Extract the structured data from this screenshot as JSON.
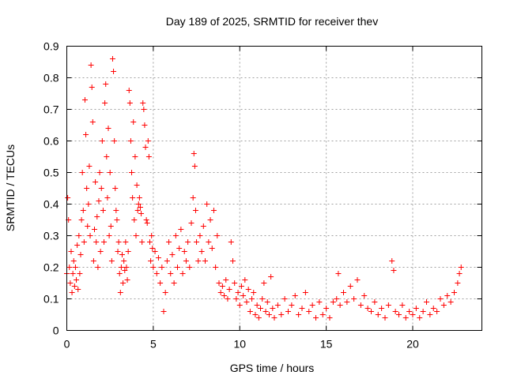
{
  "chart_data": {
    "type": "scatter",
    "title": "Day 189 of 2025, SRMTID for receiver thev",
    "xlabel": "GPS time / hours",
    "ylabel": "SRMTID / TECUs",
    "xlim": [
      0,
      24
    ],
    "ylim": [
      0,
      0.9
    ],
    "xticks": [
      0,
      5,
      10,
      15,
      20
    ],
    "xtick_labels": [
      "0",
      "5",
      "10",
      "15",
      "20"
    ],
    "yticks": [
      0,
      0.1,
      0.2,
      0.3,
      0.4,
      0.5,
      0.6,
      0.7,
      0.8,
      0.9
    ],
    "ytick_labels": [
      "0",
      "0.1",
      "0.2",
      "0.3",
      "0.4",
      "0.5",
      "0.6",
      "0.7",
      "0.8",
      "0.9"
    ],
    "grid": true,
    "marker": "plus",
    "color": "#ff0000",
    "series": [
      {
        "name": "SRMTID",
        "points": [
          [
            0.0,
            0.18
          ],
          [
            0.05,
            0.42
          ],
          [
            0.1,
            0.35
          ],
          [
            0.15,
            0.2
          ],
          [
            0.2,
            0.15
          ],
          [
            0.25,
            0.25
          ],
          [
            0.3,
            0.12
          ],
          [
            0.35,
            0.18
          ],
          [
            0.4,
            0.22
          ],
          [
            0.45,
            0.14
          ],
          [
            0.5,
            0.2
          ],
          [
            0.55,
            0.16
          ],
          [
            0.6,
            0.27
          ],
          [
            0.65,
            0.13
          ],
          [
            0.7,
            0.3
          ],
          [
            0.75,
            0.18
          ],
          [
            0.8,
            0.24
          ],
          [
            0.85,
            0.35
          ],
          [
            0.9,
            0.5
          ],
          [
            0.95,
            0.38
          ],
          [
            1.0,
            0.28
          ],
          [
            1.05,
            0.73
          ],
          [
            1.1,
            0.62
          ],
          [
            1.15,
            0.45
          ],
          [
            1.2,
            0.33
          ],
          [
            1.25,
            0.4
          ],
          [
            1.3,
            0.52
          ],
          [
            1.35,
            0.3
          ],
          [
            1.4,
            0.84
          ],
          [
            1.45,
            0.77
          ],
          [
            1.5,
            0.66
          ],
          [
            1.55,
            0.22
          ],
          [
            1.6,
            0.32
          ],
          [
            1.65,
            0.47
          ],
          [
            1.7,
            0.28
          ],
          [
            1.75,
            0.36
          ],
          [
            1.8,
            0.2
          ],
          [
            1.85,
            0.41
          ],
          [
            1.9,
            0.5
          ],
          [
            1.95,
            0.25
          ],
          [
            2.0,
            0.45
          ],
          [
            2.05,
            0.6
          ],
          [
            2.1,
            0.38
          ],
          [
            2.15,
            0.28
          ],
          [
            2.2,
            0.72
          ],
          [
            2.25,
            0.78
          ],
          [
            2.3,
            0.55
          ],
          [
            2.35,
            0.42
          ],
          [
            2.4,
            0.64
          ],
          [
            2.45,
            0.3
          ],
          [
            2.5,
            0.5
          ],
          [
            2.55,
            0.33
          ],
          [
            2.6,
            0.22
          ],
          [
            2.65,
            0.86
          ],
          [
            2.7,
            0.82
          ],
          [
            2.75,
            0.6
          ],
          [
            2.8,
            0.45
          ],
          [
            2.85,
            0.38
          ],
          [
            2.9,
            0.35
          ],
          [
            2.95,
            0.25
          ],
          [
            3.0,
            0.28
          ],
          [
            3.05,
            0.18
          ],
          [
            3.1,
            0.12
          ],
          [
            3.15,
            0.2
          ],
          [
            3.2,
            0.24
          ],
          [
            3.25,
            0.15
          ],
          [
            3.3,
            0.22
          ],
          [
            3.35,
            0.19
          ],
          [
            3.4,
            0.28
          ],
          [
            3.45,
            0.2
          ],
          [
            3.5,
            0.16
          ],
          [
            3.55,
            0.25
          ],
          [
            3.6,
            0.76
          ],
          [
            3.65,
            0.72
          ],
          [
            3.7,
            0.6
          ],
          [
            3.75,
            0.5
          ],
          [
            3.8,
            0.42
          ],
          [
            3.85,
            0.66
          ],
          [
            3.9,
            0.35
          ],
          [
            3.95,
            0.55
          ],
          [
            4.0,
            0.3
          ],
          [
            4.05,
            0.46
          ],
          [
            4.1,
            0.38
          ],
          [
            4.15,
            0.4
          ],
          [
            4.2,
            0.42
          ],
          [
            4.25,
            0.39
          ],
          [
            4.3,
            0.37
          ],
          [
            4.35,
            0.28
          ],
          [
            4.4,
            0.72
          ],
          [
            4.45,
            0.7
          ],
          [
            4.5,
            0.65
          ],
          [
            4.55,
            0.58
          ],
          [
            4.6,
            0.35
          ],
          [
            4.65,
            0.34
          ],
          [
            4.7,
            0.6
          ],
          [
            4.75,
            0.55
          ],
          [
            4.8,
            0.28
          ],
          [
            4.85,
            0.22
          ],
          [
            4.9,
            0.3
          ],
          [
            4.95,
            0.26
          ],
          [
            5.0,
            0.2
          ],
          [
            5.1,
            0.25
          ],
          [
            5.2,
            0.18
          ],
          [
            5.3,
            0.23
          ],
          [
            5.4,
            0.15
          ],
          [
            5.5,
            0.2
          ],
          [
            5.6,
            0.06
          ],
          [
            5.7,
            0.12
          ],
          [
            5.8,
            0.22
          ],
          [
            5.9,
            0.28
          ],
          [
            6.0,
            0.18
          ],
          [
            6.1,
            0.24
          ],
          [
            6.2,
            0.15
          ],
          [
            6.3,
            0.3
          ],
          [
            6.4,
            0.2
          ],
          [
            6.5,
            0.26
          ],
          [
            6.6,
            0.32
          ],
          [
            6.7,
            0.18
          ],
          [
            6.8,
            0.25
          ],
          [
            6.9,
            0.22
          ],
          [
            7.0,
            0.28
          ],
          [
            7.1,
            0.2
          ],
          [
            7.2,
            0.34
          ],
          [
            7.3,
            0.42
          ],
          [
            7.35,
            0.56
          ],
          [
            7.4,
            0.52
          ],
          [
            7.45,
            0.38
          ],
          [
            7.5,
            0.28
          ],
          [
            7.6,
            0.22
          ],
          [
            7.7,
            0.3
          ],
          [
            7.8,
            0.25
          ],
          [
            7.9,
            0.33
          ],
          [
            8.0,
            0.22
          ],
          [
            8.1,
            0.4
          ],
          [
            8.2,
            0.28
          ],
          [
            8.3,
            0.35
          ],
          [
            8.4,
            0.26
          ],
          [
            8.5,
            0.38
          ],
          [
            8.6,
            0.2
          ],
          [
            8.7,
            0.3
          ],
          [
            8.8,
            0.15
          ],
          [
            8.9,
            0.12
          ],
          [
            9.0,
            0.14
          ],
          [
            9.1,
            0.11
          ],
          [
            9.2,
            0.16
          ],
          [
            9.3,
            0.1
          ],
          [
            9.4,
            0.13
          ],
          [
            9.5,
            0.28
          ],
          [
            9.6,
            0.22
          ],
          [
            9.7,
            0.15
          ],
          [
            9.8,
            0.1
          ],
          [
            9.9,
            0.12
          ],
          [
            10.0,
            0.08
          ],
          [
            10.1,
            0.14
          ],
          [
            10.2,
            0.11
          ],
          [
            10.3,
            0.16
          ],
          [
            10.4,
            0.09
          ],
          [
            10.5,
            0.13
          ],
          [
            10.6,
            0.06
          ],
          [
            10.7,
            0.1
          ],
          [
            10.8,
            0.12
          ],
          [
            10.9,
            0.05
          ],
          [
            11.0,
            0.08
          ],
          [
            11.1,
            0.04
          ],
          [
            11.2,
            0.07
          ],
          [
            11.3,
            0.1
          ],
          [
            11.4,
            0.15
          ],
          [
            11.5,
            0.06
          ],
          [
            11.6,
            0.09
          ],
          [
            11.7,
            0.05
          ],
          [
            11.8,
            0.17
          ],
          [
            11.9,
            0.07
          ],
          [
            12.0,
            0.04
          ],
          [
            12.2,
            0.08
          ],
          [
            12.4,
            0.05
          ],
          [
            12.6,
            0.1
          ],
          [
            12.8,
            0.06
          ],
          [
            13.0,
            0.08
          ],
          [
            13.2,
            0.11
          ],
          [
            13.4,
            0.05
          ],
          [
            13.6,
            0.07
          ],
          [
            13.8,
            0.12
          ],
          [
            14.0,
            0.06
          ],
          [
            14.2,
            0.08
          ],
          [
            14.4,
            0.04
          ],
          [
            14.6,
            0.09
          ],
          [
            14.8,
            0.05
          ],
          [
            15.0,
            0.07
          ],
          [
            15.2,
            0.04
          ],
          [
            15.4,
            0.09
          ],
          [
            15.6,
            0.1
          ],
          [
            15.7,
            0.18
          ],
          [
            15.8,
            0.08
          ],
          [
            16.0,
            0.12
          ],
          [
            16.2,
            0.09
          ],
          [
            16.4,
            0.14
          ],
          [
            16.6,
            0.1
          ],
          [
            16.8,
            0.16
          ],
          [
            17.0,
            0.08
          ],
          [
            17.2,
            0.11
          ],
          [
            17.4,
            0.07
          ],
          [
            17.6,
            0.06
          ],
          [
            17.8,
            0.09
          ],
          [
            18.0,
            0.05
          ],
          [
            18.2,
            0.07
          ],
          [
            18.4,
            0.04
          ],
          [
            18.6,
            0.08
          ],
          [
            18.8,
            0.22
          ],
          [
            18.9,
            0.19
          ],
          [
            19.0,
            0.06
          ],
          [
            19.2,
            0.05
          ],
          [
            19.4,
            0.08
          ],
          [
            19.6,
            0.04
          ],
          [
            19.8,
            0.06
          ],
          [
            20.0,
            0.05
          ],
          [
            20.2,
            0.07
          ],
          [
            20.4,
            0.04
          ],
          [
            20.6,
            0.06
          ],
          [
            20.8,
            0.09
          ],
          [
            21.0,
            0.05
          ],
          [
            21.2,
            0.07
          ],
          [
            21.4,
            0.06
          ],
          [
            21.6,
            0.1
          ],
          [
            21.8,
            0.08
          ],
          [
            22.0,
            0.11
          ],
          [
            22.2,
            0.09
          ],
          [
            22.4,
            0.12
          ],
          [
            22.6,
            0.15
          ],
          [
            22.7,
            0.18
          ],
          [
            22.8,
            0.2
          ]
        ]
      }
    ]
  }
}
